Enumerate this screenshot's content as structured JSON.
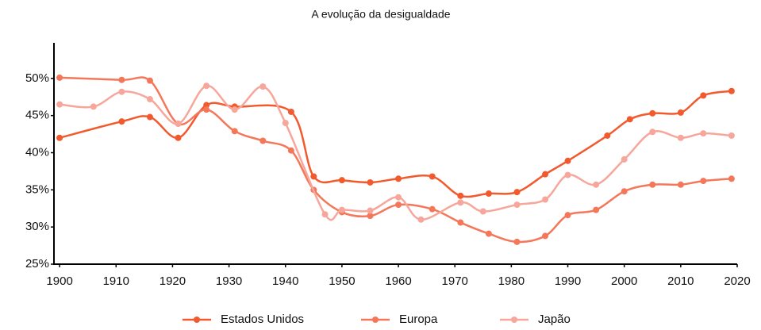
{
  "chart_data": {
    "type": "line",
    "title": "A evolução da desigualdade",
    "xlim": [
      1899,
      2020
    ],
    "xticks": [
      1900,
      1910,
      1920,
      1930,
      1940,
      1950,
      1960,
      1970,
      1980,
      1990,
      2000,
      2010,
      2020
    ],
    "ylim": [
      25,
      55
    ],
    "yticks": [
      {
        "value": 25,
        "label": "25%"
      },
      {
        "value": 30,
        "label": "30%"
      },
      {
        "value": 35,
        "label": "35%"
      },
      {
        "value": 40,
        "label": "40%"
      },
      {
        "value": 45,
        "label": "45%"
      },
      {
        "value": 50,
        "label": "50%"
      }
    ],
    "legend": "bottom",
    "series": [
      {
        "name": "Estados Unidos",
        "color": "#f25a2e",
        "x": [
          1900,
          1911,
          1916,
          1921,
          1926,
          1931,
          1941,
          1945,
          1950,
          1955,
          1960,
          1966,
          1971,
          1976,
          1981,
          1986,
          1990,
          1997,
          2001,
          2005,
          2010,
          2014,
          2019
        ],
        "values": [
          42,
          44.2,
          44.8,
          42,
          46.4,
          46.2,
          45.5,
          36.8,
          36.3,
          36,
          36.5,
          36.8,
          34.2,
          34.5,
          34.7,
          37.1,
          38.9,
          42.3,
          44.5,
          45.3,
          45.4,
          47.7,
          48.3
        ]
      },
      {
        "name": "Europa",
        "color": "#f4775a",
        "x": [
          1900,
          1911,
          1916,
          1921,
          1926,
          1931,
          1936,
          1941,
          1945,
          1950,
          1955,
          1960,
          1966,
          1971,
          1976,
          1981,
          1986,
          1990,
          1995,
          2000,
          2005,
          2010,
          2014,
          2019
        ],
        "values": [
          50.1,
          49.8,
          49.7,
          43.9,
          45.8,
          42.9,
          41.6,
          40.3,
          35,
          32,
          31.5,
          33,
          32.4,
          30.6,
          29.1,
          28,
          28.8,
          31.6,
          32.3,
          34.8,
          35.7,
          35.7,
          36.2,
          36.5
        ]
      },
      {
        "name": "Japão",
        "color": "#f7a69b",
        "x": [
          1900,
          1906,
          1911,
          1916,
          1921,
          1926,
          1931,
          1936,
          1940,
          1947,
          1950,
          1955,
          1960,
          1964,
          1971,
          1975,
          1981,
          1986,
          1990,
          1995,
          2000,
          2005,
          2010,
          2014,
          2019
        ],
        "values": [
          46.5,
          46.2,
          48.2,
          47.2,
          43.9,
          49,
          45.8,
          48.9,
          44,
          31.7,
          32.3,
          32.2,
          34,
          31,
          33.3,
          32.1,
          33,
          33.7,
          37,
          35.7,
          39.1,
          42.8,
          42,
          42.6,
          42.3
        ]
      }
    ]
  }
}
